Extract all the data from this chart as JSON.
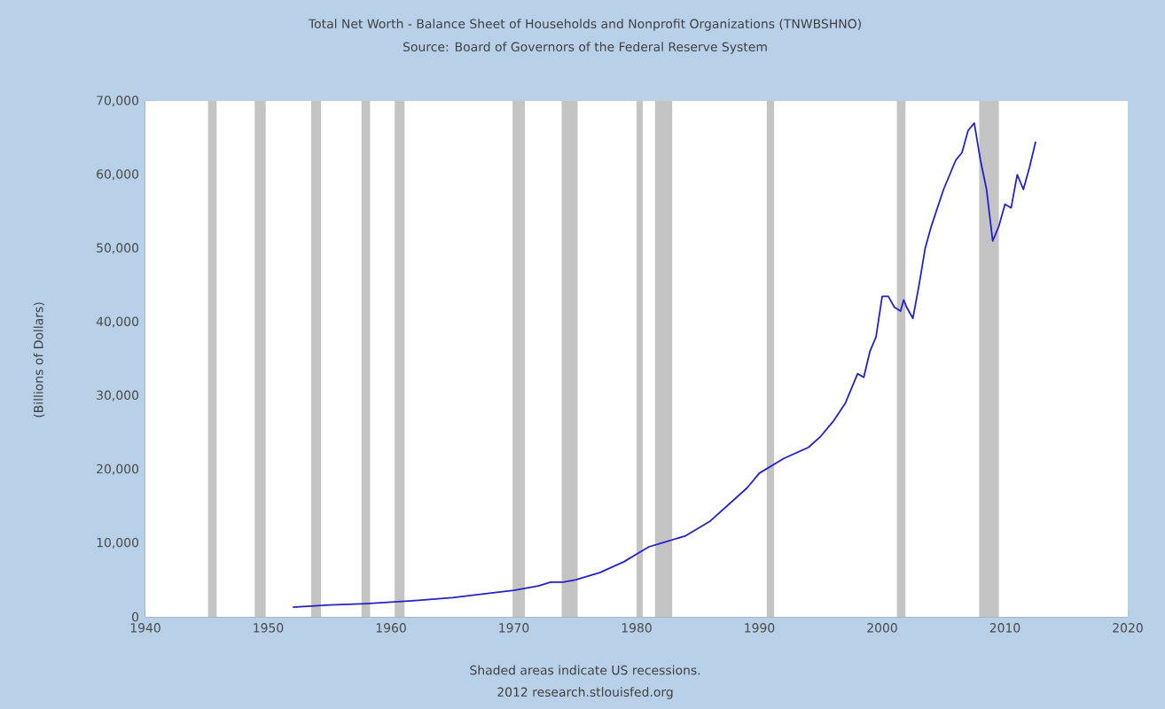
{
  "chart_data": {
    "type": "line",
    "title": "Total Net Worth - Balance Sheet of Households and Nonprofit Organizations (TNWBSHNO)",
    "subtitle": "Source: Board of Governors of the Federal Reserve System",
    "ylabel": "(Billions of Dollars)",
    "annotations": [
      "Shaded areas indicate US recessions.",
      "2012 research.stlouisfed.org"
    ],
    "x": [
      1952,
      1955,
      1958,
      1960,
      1962,
      1965,
      1968,
      1970,
      1972,
      1973,
      1974,
      1975,
      1977,
      1979,
      1980,
      1981,
      1982,
      1984,
      1986,
      1988,
      1989,
      1990,
      1991,
      1992,
      1994,
      1995,
      1996,
      1997,
      1998,
      1998.5,
      1999,
      1999.5,
      2000,
      2000.5,
      2001,
      2001.5,
      2001.75,
      2002,
      2002.5,
      2003,
      2003.5,
      2004,
      2005,
      2006,
      2006.5,
      2007,
      2007.5,
      2008,
      2008.5,
      2009,
      2009.5,
      2010,
      2010.5,
      2011,
      2011.5,
      2012,
      2012.5
    ],
    "series": [
      {
        "color": "#2222c8",
        "values": [
          1300,
          1600,
          1800,
          2000,
          2200,
          2600,
          3200,
          3600,
          4200,
          4700,
          4700,
          5000,
          6000,
          7500,
          8500,
          9500,
          10000,
          11000,
          13000,
          16000,
          17500,
          19500,
          20500,
          21500,
          23000,
          24500,
          26500,
          29000,
          33000,
          32500,
          36000,
          38000,
          43500,
          43500,
          42000,
          41500,
          43000,
          42000,
          40500,
          45000,
          50000,
          53000,
          58000,
          62000,
          63000,
          66000,
          67000,
          62000,
          58000,
          51000,
          53000,
          56000,
          55500,
          60000,
          58000,
          61000,
          64500
        ]
      }
    ],
    "xlim": [
      1940,
      2020
    ],
    "xticks": [
      1940,
      1950,
      1960,
      1970,
      1980,
      1990,
      2000,
      2010,
      2020
    ],
    "ylim": [
      0,
      70000
    ],
    "yticks": [
      0,
      {
        "value": 10000,
        "label": "10,000"
      },
      {
        "value": 20000,
        "label": "20,000"
      },
      {
        "value": 30000,
        "label": "30,000"
      },
      {
        "value": 40000,
        "label": "40,000"
      },
      {
        "value": 50000,
        "label": "50,000"
      },
      {
        "value": 60000,
        "label": "60,000"
      },
      {
        "value": 70000,
        "label": "70,000"
      }
    ],
    "grid": "y",
    "line_style": "solid",
    "bands": [
      {
        "axis": "x",
        "from": 1945.1,
        "to": 1945.8,
        "color": "#c4c4c4"
      },
      {
        "axis": "x",
        "from": 1948.9,
        "to": 1949.8,
        "color": "#c4c4c4"
      },
      {
        "axis": "x",
        "from": 1953.5,
        "to": 1954.3,
        "color": "#c4c4c4"
      },
      {
        "axis": "x",
        "from": 1957.6,
        "to": 1958.3,
        "color": "#c4c4c4"
      },
      {
        "axis": "x",
        "from": 1960.3,
        "to": 1961.1,
        "color": "#c4c4c4"
      },
      {
        "axis": "x",
        "from": 1969.9,
        "to": 1970.9,
        "color": "#c4c4c4"
      },
      {
        "axis": "x",
        "from": 1973.9,
        "to": 1975.2,
        "color": "#c4c4c4"
      },
      {
        "axis": "x",
        "from": 1980.0,
        "to": 1980.5,
        "color": "#c4c4c4"
      },
      {
        "axis": "x",
        "from": 1981.5,
        "to": 1982.9,
        "color": "#c4c4c4"
      },
      {
        "axis": "x",
        "from": 1990.6,
        "to": 1991.2,
        "color": "#c4c4c4"
      },
      {
        "axis": "x",
        "from": 2001.2,
        "to": 2001.9,
        "color": "#c4c4c4"
      },
      {
        "axis": "x",
        "from": 2007.9,
        "to": 2009.5,
        "color": "#c4c4c4"
      }
    ]
  }
}
